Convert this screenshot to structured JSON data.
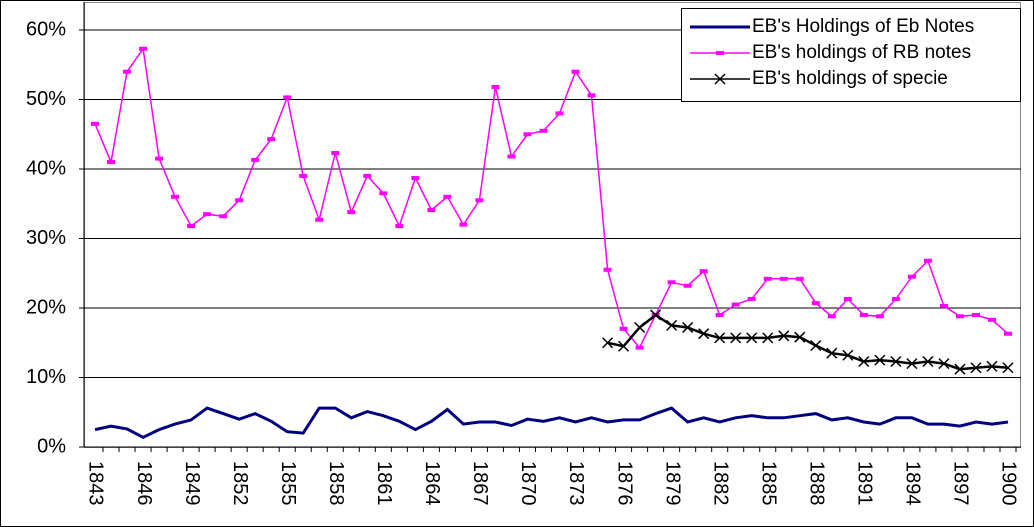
{
  "chart_data": {
    "type": "line",
    "categories": [
      "1843",
      null,
      null,
      "1846",
      null,
      null,
      "1849",
      null,
      null,
      "1852",
      null,
      null,
      "1855",
      null,
      null,
      "1858",
      null,
      null,
      "1861",
      null,
      null,
      "1864",
      null,
      null,
      "1867",
      null,
      null,
      "1870",
      null,
      null,
      "1873",
      null,
      null,
      "1876",
      null,
      null,
      "1879",
      null,
      null,
      "1882",
      null,
      null,
      "1885",
      null,
      null,
      "1888",
      null,
      null,
      "1891",
      null,
      null,
      "1894",
      null,
      null,
      "1897",
      null,
      null,
      "1900"
    ],
    "series": [
      {
        "name": "EB's Holdings of Eb Notes",
        "color": "#000080",
        "marker": "none",
        "values": [
          2.5,
          3,
          2.6,
          1.4,
          2.5,
          3.3,
          3.9,
          5.6,
          4.8,
          4,
          4.8,
          3.7,
          2.2,
          2,
          5.6,
          5.6,
          4.2,
          5.1,
          4.5,
          3.7,
          2.5,
          3.7,
          5.4,
          3.3,
          3.6,
          3.6,
          3.1,
          4,
          3.7,
          4.2,
          3.6,
          4.2,
          3.6,
          3.9,
          3.9,
          4.8,
          5.6,
          3.6,
          4.2,
          3.6,
          4.2,
          4.5,
          4.2,
          4.2,
          4.5,
          4.8,
          3.9,
          4.2,
          3.6,
          3.3,
          4.2,
          4.2,
          3.3,
          3.3,
          3,
          3.6,
          3.3,
          3.6
        ]
      },
      {
        "name": "EB's holdings of RB notes",
        "color": "#ff00ff",
        "marker": "dash",
        "values": [
          46.5,
          41,
          54,
          57.3,
          41.5,
          36,
          31.8,
          33.5,
          33.2,
          35.5,
          41.3,
          44.3,
          50.3,
          39,
          32.7,
          42.3,
          33.8,
          39,
          36.5,
          31.8,
          38.7,
          34.1,
          36,
          32,
          35.5,
          51.8,
          41.8,
          45,
          45.5,
          48,
          54,
          50.6,
          25.5,
          17,
          14.3,
          19,
          23.7,
          23.2,
          25.3,
          19,
          20.5,
          21.3,
          24.2,
          24.2,
          24.2,
          20.7,
          18.8,
          21.3,
          19,
          18.8,
          21.3,
          24.5,
          26.8,
          20.3,
          18.8,
          19,
          18.3,
          16.3
        ]
      },
      {
        "name": "EB's holdings of specie",
        "color": "#000000",
        "marker": "x",
        "values": [
          null,
          null,
          null,
          null,
          null,
          null,
          null,
          null,
          null,
          null,
          null,
          null,
          null,
          null,
          null,
          null,
          null,
          null,
          null,
          null,
          null,
          null,
          null,
          null,
          null,
          null,
          null,
          null,
          null,
          null,
          null,
          null,
          15,
          14.5,
          17.2,
          19,
          17.5,
          17.2,
          16.3,
          15.7,
          15.7,
          15.7,
          15.7,
          16,
          15.8,
          14.6,
          13.5,
          13.2,
          12.3,
          12.5,
          12.3,
          12,
          12.3,
          12,
          11.2,
          11.4,
          11.6,
          11.4
        ]
      }
    ],
    "ylim": [
      0,
      60
    ],
    "yticks": [
      {
        "value": 0,
        "label": "0%"
      },
      {
        "value": 10,
        "label": "10%"
      },
      {
        "value": 20,
        "label": "20%"
      },
      {
        "value": 30,
        "label": "30%"
      },
      {
        "value": 40,
        "label": "40%"
      },
      {
        "value": 50,
        "label": "50%"
      },
      {
        "value": 60,
        "label": "60%"
      }
    ],
    "grid": true,
    "legend": "upper right"
  }
}
